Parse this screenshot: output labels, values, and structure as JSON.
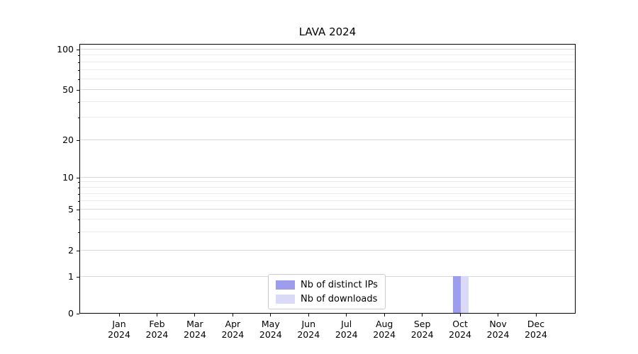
{
  "chart_data": {
    "type": "bar",
    "title": "LAVA 2024",
    "categories": [
      {
        "month": "Jan",
        "year": "2024"
      },
      {
        "month": "Feb",
        "year": "2024"
      },
      {
        "month": "Mar",
        "year": "2024"
      },
      {
        "month": "Apr",
        "year": "2024"
      },
      {
        "month": "May",
        "year": "2024"
      },
      {
        "month": "Jun",
        "year": "2024"
      },
      {
        "month": "Jul",
        "year": "2024"
      },
      {
        "month": "Aug",
        "year": "2024"
      },
      {
        "month": "Sep",
        "year": "2024"
      },
      {
        "month": "Oct",
        "year": "2024"
      },
      {
        "month": "Nov",
        "year": "2024"
      },
      {
        "month": "Dec",
        "year": "2024"
      }
    ],
    "series": [
      {
        "name": "Nb of distinct IPs",
        "color": "#9d9df0",
        "values": [
          0,
          0,
          0,
          0,
          0,
          0,
          0,
          0,
          0,
          1,
          0,
          0
        ]
      },
      {
        "name": "Nb of downloads",
        "color": "#dadaf8",
        "values": [
          0,
          0,
          0,
          0,
          0,
          0,
          0,
          0,
          0,
          1,
          0,
          0
        ]
      }
    ],
    "y_axis": {
      "scale": "symlog",
      "ticks": [
        0,
        1,
        2,
        5,
        10,
        20,
        50,
        100
      ],
      "range": [
        0,
        100
      ]
    },
    "x_axis": {
      "year_label": "2024"
    },
    "legend": {
      "position": "lower center"
    },
    "grid": true,
    "colors": {
      "grid_major": "#d9d9d9",
      "grid_minor": "#ebebeb",
      "spine": "#000000"
    }
  }
}
